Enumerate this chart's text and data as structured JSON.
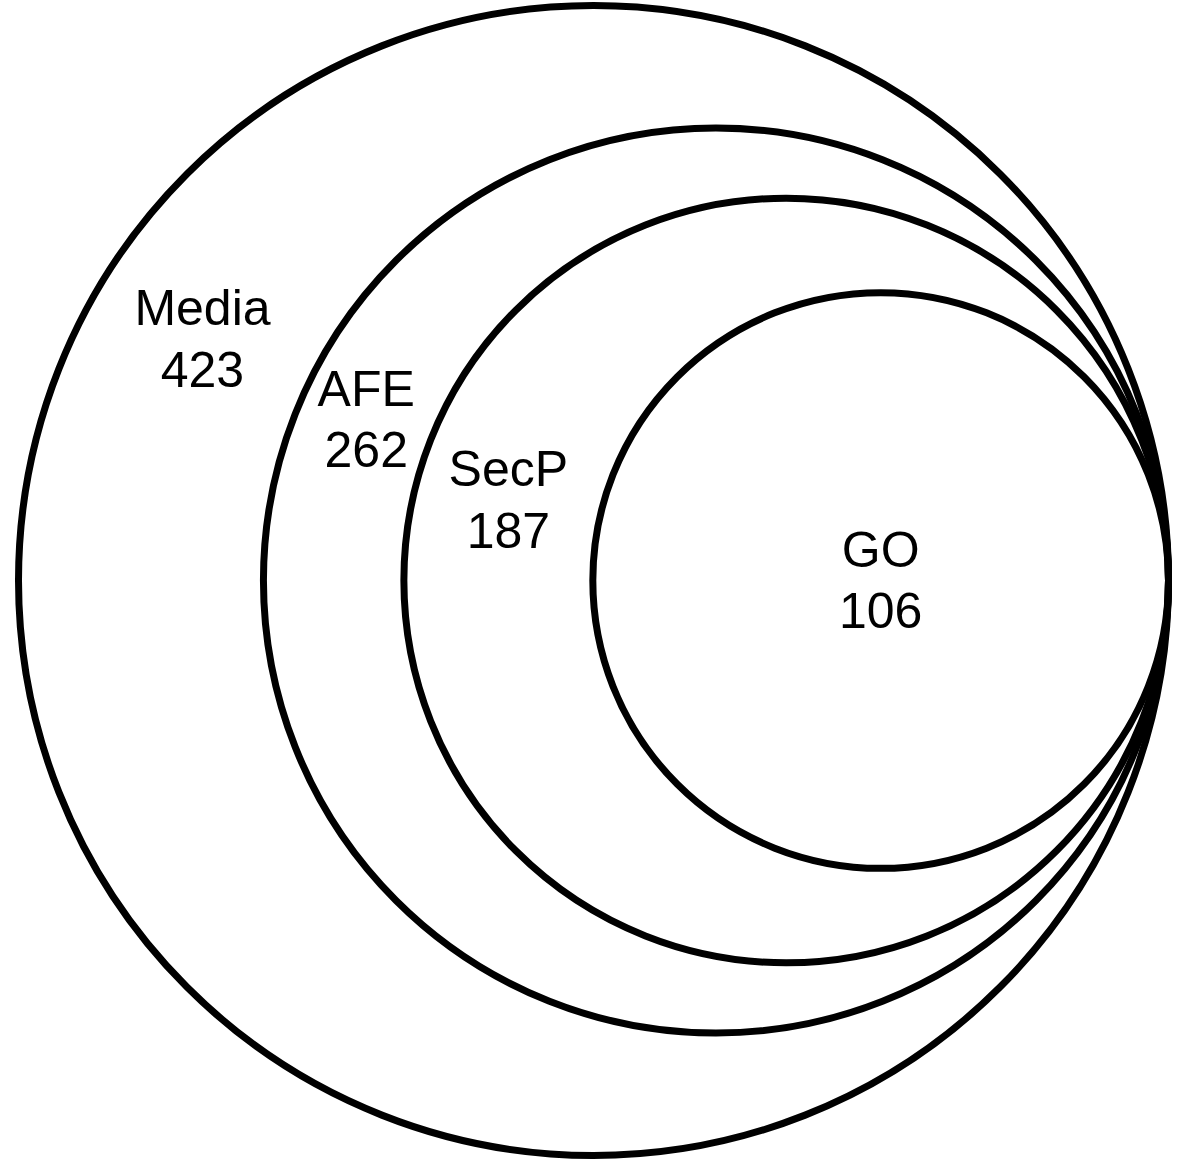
{
  "chart_data": {
    "type": "other",
    "categories": [
      "Media",
      "AFE",
      "SecP",
      "GO"
    ],
    "values": [
      423,
      262,
      187,
      106
    ],
    "data_labels": true,
    "color": "#000000"
  }
}
